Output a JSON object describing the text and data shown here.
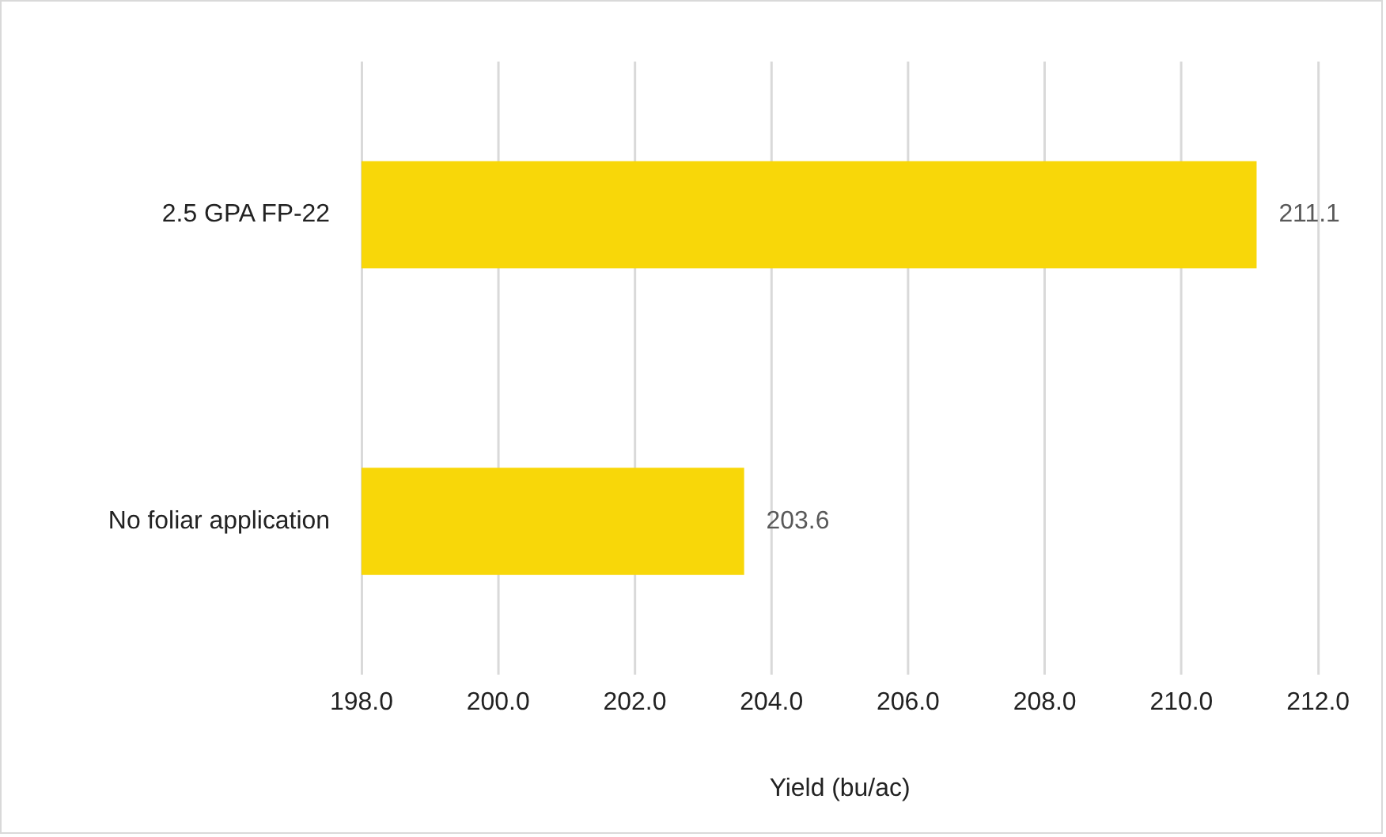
{
  "chart_data": {
    "type": "bar",
    "orientation": "horizontal",
    "categories": [
      "2.5 GPA FP-22",
      "No foliar application"
    ],
    "values": [
      211.1,
      203.6
    ],
    "color": "#f8d709",
    "xlabel": "Yield (bu/ac)",
    "xlim": [
      198,
      212
    ],
    "xticks": [
      {
        "value": 198,
        "label": "198.0"
      },
      {
        "value": 200,
        "label": "200.0"
      },
      {
        "value": 202,
        "label": "202.0"
      },
      {
        "value": 204,
        "label": "204.0"
      },
      {
        "value": 206,
        "label": "206.0"
      },
      {
        "value": 208,
        "label": "208.0"
      },
      {
        "value": 210,
        "label": "210.0"
      },
      {
        "value": 212,
        "label": "212.0"
      }
    ],
    "grid": "x",
    "legend": false,
    "data_labels": true
  }
}
